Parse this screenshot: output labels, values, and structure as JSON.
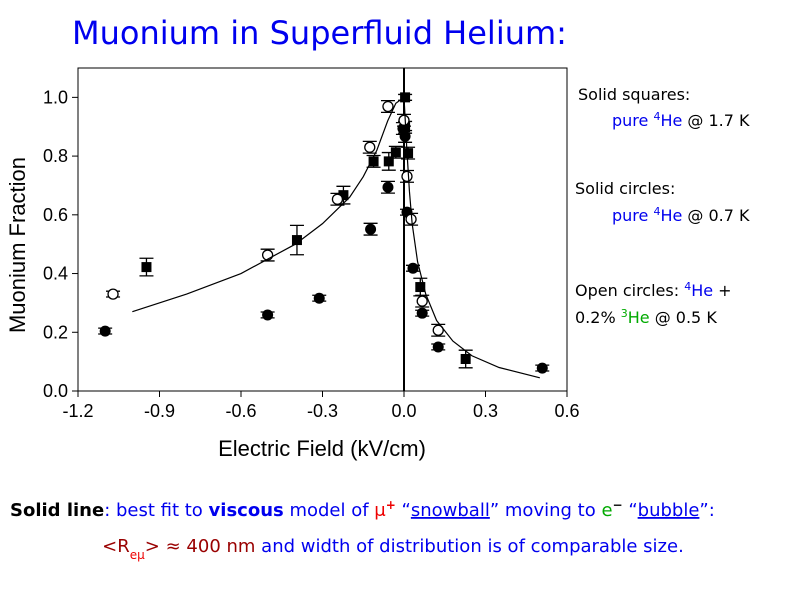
{
  "chart_data": {
    "type": "scatter",
    "title": "Muonium in Superfluid Helium:",
    "x_label": "Electric Field (kV/cm)",
    "y_label": "Muonium Fraction",
    "xlim": [
      -1.2,
      0.6
    ],
    "ylim": [
      0,
      1.1
    ],
    "xticks": [
      -1.2,
      -0.9,
      -0.6,
      -0.3,
      {
        "value": 0,
        "label": "0.0"
      },
      0.3,
      0.6
    ],
    "yticks": [
      {
        "value": 0,
        "label": "0.0"
      },
      0.2,
      0.4,
      0.6,
      0.8,
      {
        "value": 1,
        "label": "1.0"
      }
    ],
    "series": [
      {
        "type": "scatter",
        "marker": "square",
        "color": "#000000",
        "x": [
          -0.948,
          -0.394,
          -0.223,
          -0.112,
          -0.056,
          -0.03,
          0.004,
          0.004,
          0.015,
          0.06,
          0.227
        ],
        "values": [
          0.422,
          0.514,
          0.667,
          0.782,
          0.782,
          0.813,
          1.0,
          0.898,
          0.81,
          0.354,
          0.109
        ],
        "errors": [
          0.03,
          0.05,
          0.03,
          0.02,
          0.03,
          0.02,
          0.01,
          0.02,
          0.02,
          0.03,
          0.03
        ]
      },
      {
        "type": "scatter",
        "marker": "circle",
        "color": "#000000",
        "x": [
          -1.1,
          -0.502,
          -0.312,
          -0.123,
          -0.059,
          -0.004,
          0.004,
          0.011,
          0.033,
          0.067,
          0.126,
          0.509
        ],
        "values": [
          0.204,
          0.259,
          0.316,
          0.551,
          0.694,
          0.894,
          0.867,
          0.609,
          0.418,
          0.265,
          0.15,
          0.078
        ],
        "errors": [
          0.01,
          0.01,
          0.01,
          0.02,
          0.02,
          0.02,
          0.02,
          0.01,
          0.01,
          0.01,
          0.01,
          0.01
        ]
      },
      {
        "type": "scatter",
        "marker": "open-circle",
        "color": "#000000",
        "x": [
          -1.071,
          -0.502,
          -0.245,
          -0.126,
          -0.059,
          0.0,
          0.011,
          0.026,
          0.067,
          0.126
        ],
        "values": [
          0.33,
          0.463,
          0.653,
          0.83,
          0.969,
          0.922,
          0.731,
          0.585,
          0.306,
          0.207
        ],
        "errors": [
          0.01,
          0.02,
          0.02,
          0.02,
          0.02,
          0.02,
          0.02,
          0.02,
          0.02,
          0.02
        ]
      },
      {
        "type": "line",
        "color": "#000000",
        "x": [
          -1.0,
          -0.8,
          -0.6,
          -0.4,
          -0.3,
          -0.2,
          -0.15,
          -0.1,
          -0.06,
          -0.03,
          0.0,
          0.01,
          0.02,
          0.03,
          0.05,
          0.08,
          0.12,
          0.18,
          0.25,
          0.35,
          0.5
        ],
        "values": [
          0.27,
          0.33,
          0.4,
          0.5,
          0.57,
          0.66,
          0.73,
          0.82,
          0.92,
          0.98,
          1.0,
          0.83,
          0.68,
          0.57,
          0.44,
          0.33,
          0.24,
          0.17,
          0.12,
          0.08,
          0.045
        ]
      }
    ],
    "notes": [
      [
        "Solid squares:"
      ],
      [
        "pure ",
        "4",
        "He",
        " @ 1.7 K"
      ],
      [
        "Solid circles:"
      ],
      [
        "pure ",
        "4",
        "He",
        " @ 0.7 K"
      ],
      [
        "Open circles: ",
        "4",
        "He",
        " +"
      ],
      [
        "0.2% ",
        "3",
        "He",
        " @ 0.5 K"
      ],
      [
        "Solid line",
        ": best fit to ",
        "viscous",
        " model of ",
        "μ",
        "+",
        " “",
        "snowball",
        "” moving to ",
        "e",
        "−",
        " “",
        "bubble",
        "”:"
      ],
      [
        "<R",
        "eμ",
        ">",
        " ≈ 400 nm",
        " and width of distribution is of comparable size."
      ]
    ]
  }
}
